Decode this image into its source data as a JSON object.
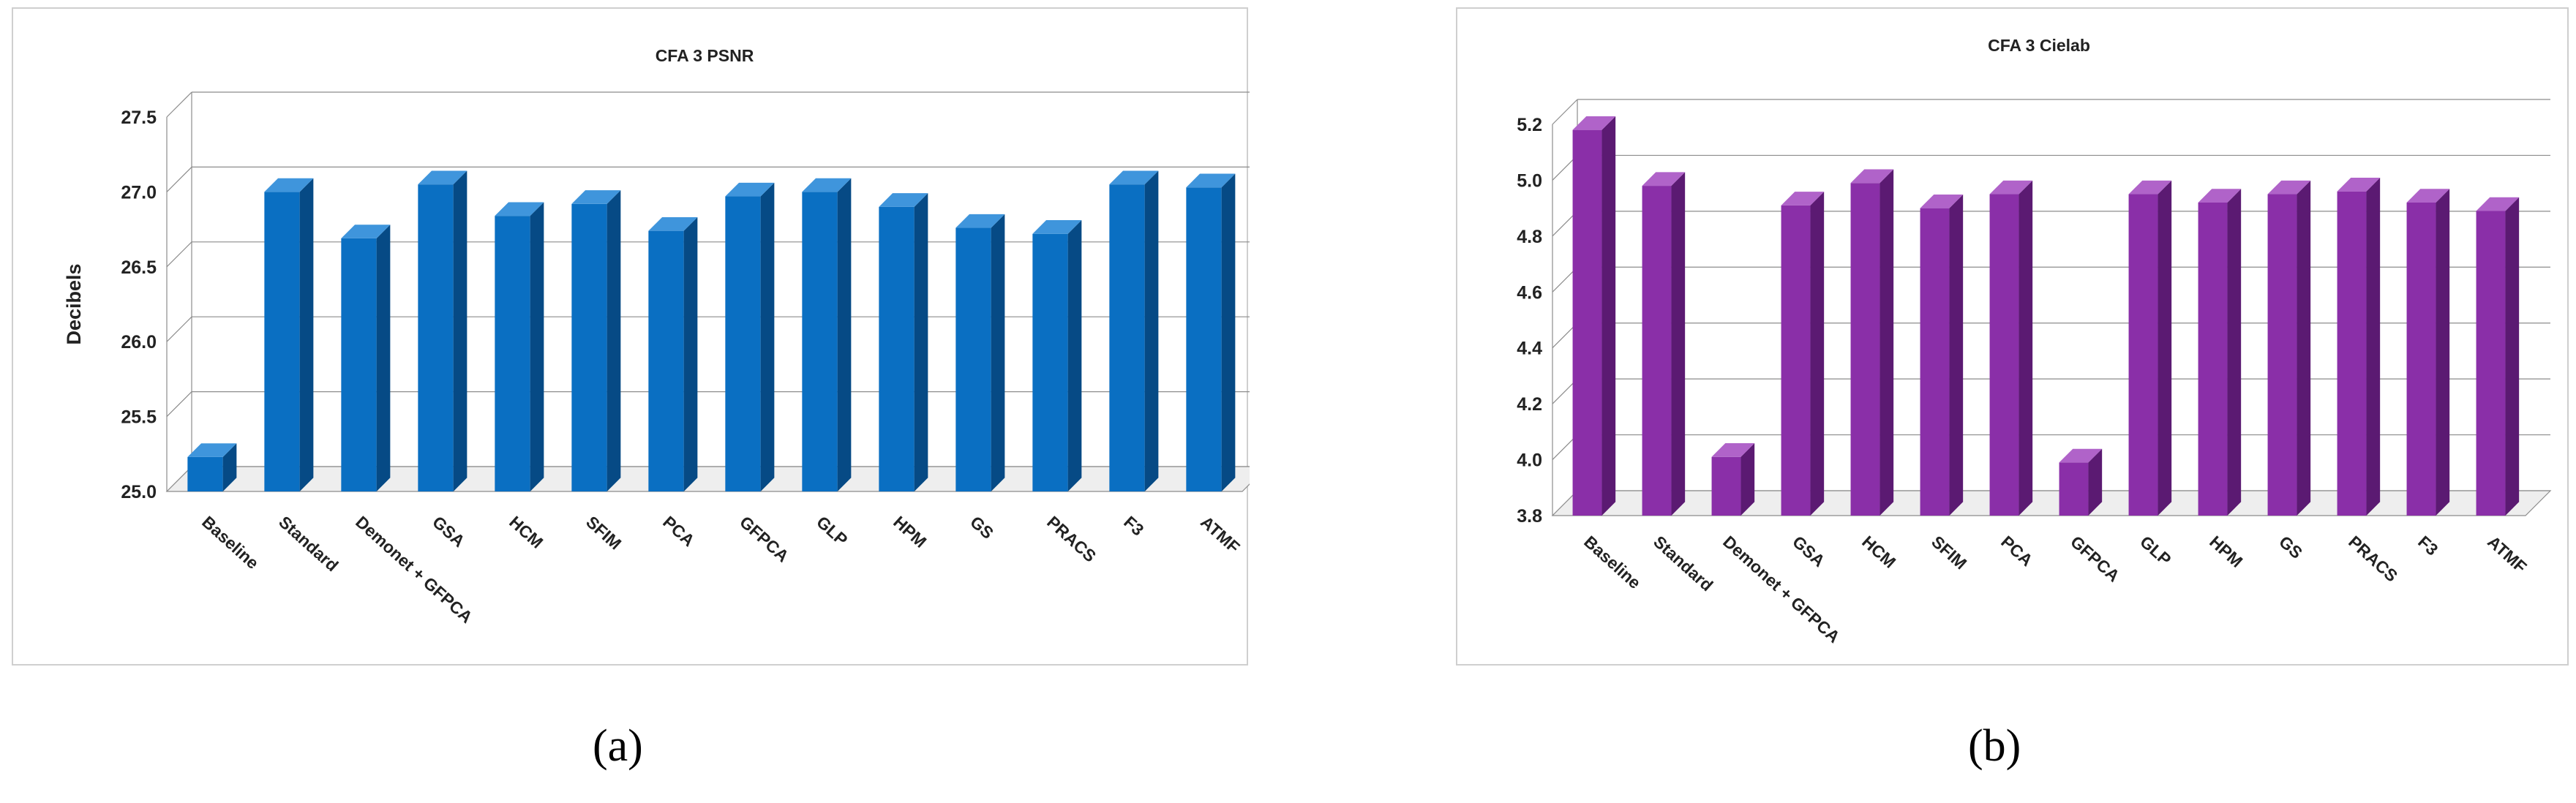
{
  "captions": {
    "a": "(a)",
    "b": "(b)"
  },
  "chart_data": [
    {
      "type": "bar",
      "title": "CFA 3 PSNR",
      "xlabel": "",
      "ylabel": "Decibels",
      "categories": [
        "Baseline",
        "Standard",
        "Demonet + GFPCA",
        "GSA",
        "HCM",
        "SFIM",
        "PCA",
        "GFPCA",
        "GLP",
        "HPM",
        "GS",
        "PRACS",
        "F3",
        "ATMF"
      ],
      "values": [
        25.23,
        27.0,
        26.69,
        27.05,
        26.84,
        26.92,
        26.74,
        26.97,
        27.0,
        26.9,
        26.76,
        26.72,
        27.05,
        27.03
      ],
      "ylim": [
        25.0,
        27.5
      ],
      "yticks": [
        "25.0",
        "25.5",
        "26.0",
        "26.5",
        "27.0",
        "27.5"
      ],
      "grid": true,
      "colors": {
        "front": "#0a6fc2",
        "side": "#064a85",
        "top": "#3f95dc"
      }
    },
    {
      "type": "bar",
      "title": "CFA 3 Cielab",
      "xlabel": "",
      "ylabel": "",
      "categories": [
        "Baseline",
        "Standard",
        "Demonet + GFPCA",
        "GSA",
        "HCM",
        "SFIM",
        "PCA",
        "GFPCA",
        "GLP",
        "HPM",
        "GS",
        "PRACS",
        "F3",
        "ATMF"
      ],
      "values": [
        5.18,
        4.98,
        4.01,
        4.91,
        4.99,
        4.9,
        4.95,
        3.99,
        4.95,
        4.92,
        4.95,
        4.96,
        4.92,
        4.89
      ],
      "ylim": [
        3.8,
        5.2
      ],
      "yticks": [
        "3.8",
        "4.0",
        "4.2",
        "4.4",
        "4.6",
        "4.8",
        "5.0",
        "5.2"
      ],
      "grid": true,
      "colors": {
        "front": "#8a2fa8",
        "side": "#5b1a72",
        "top": "#b063c9"
      }
    }
  ]
}
